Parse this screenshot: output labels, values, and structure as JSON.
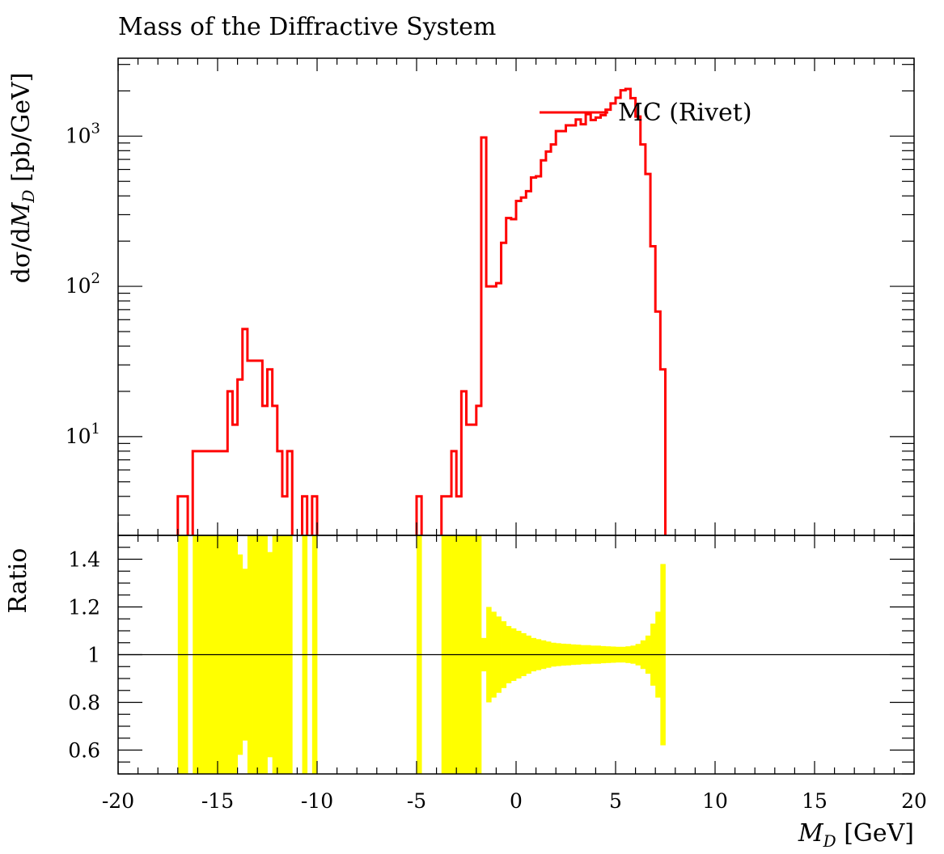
{
  "chart_data": {
    "type": "line",
    "title": "Mass of the Diffractive System",
    "xlabel_main": "M",
    "xlabel_sub": "D",
    "xlabel_unit": " [GeV]",
    "ylabel_prefix": "dσ/d",
    "ylabel_main": "M",
    "ylabel_sub": "D",
    "ylabel_unit": " [pb/GeV]",
    "ratio_label": "Ratio",
    "xlim": [
      -20,
      20
    ],
    "ylim_log": [
      2.2,
      3300
    ],
    "yscale": "log",
    "ratio_ylim": [
      0.5,
      1.5
    ],
    "x_ticks": [
      -20,
      -15,
      -10,
      -5,
      0,
      5,
      10,
      15,
      20
    ],
    "x_tick_labels": [
      "-20",
      "-15",
      "-10",
      "-5",
      "0",
      "5",
      "10",
      "15",
      "20"
    ],
    "y_ticks": [
      {
        "base": "10",
        "exp": "1",
        "value": 10
      },
      {
        "base": "10",
        "exp": "2",
        "value": 100
      },
      {
        "base": "10",
        "exp": "3",
        "value": 1000
      }
    ],
    "ratio_ticks": [
      0.6,
      0.8,
      1.0,
      1.2,
      1.4
    ],
    "ratio_tick_labels": [
      "0.6",
      "0.8",
      "1",
      "1.2",
      "1.4"
    ],
    "series": [
      {
        "name": "MC (Rivet)",
        "color": "#ff0000",
        "bin_width": 0.25,
        "bins": [
          [
            -17.0,
            4
          ],
          [
            -16.75,
            4
          ],
          [
            -16.25,
            8
          ],
          [
            -16.0,
            8
          ],
          [
            -15.75,
            8
          ],
          [
            -15.5,
            8
          ],
          [
            -15.25,
            8
          ],
          [
            -15.0,
            8
          ],
          [
            -14.75,
            8
          ],
          [
            -14.5,
            20
          ],
          [
            -14.25,
            12
          ],
          [
            -14.0,
            24
          ],
          [
            -13.75,
            52
          ],
          [
            -13.5,
            32
          ],
          [
            -13.25,
            32
          ],
          [
            -13.0,
            32
          ],
          [
            -12.75,
            16
          ],
          [
            -12.5,
            28
          ],
          [
            -12.25,
            16
          ],
          [
            -12.0,
            8
          ],
          [
            -11.75,
            4
          ],
          [
            -11.5,
            8
          ],
          [
            -10.75,
            4
          ],
          [
            -10.25,
            4
          ],
          [
            -5.0,
            4
          ],
          [
            -3.75,
            4
          ],
          [
            -3.5,
            4
          ],
          [
            -3.25,
            8
          ],
          [
            -3.0,
            4
          ],
          [
            -2.75,
            20
          ],
          [
            -2.5,
            12
          ],
          [
            -2.25,
            12
          ],
          [
            -2.0,
            16
          ],
          [
            -1.75,
            980
          ],
          [
            -1.5,
            100
          ],
          [
            -1.25,
            100
          ],
          [
            -1.0,
            105
          ],
          [
            -0.75,
            195
          ],
          [
            -0.5,
            285
          ],
          [
            -0.25,
            280
          ],
          [
            0.0,
            370
          ],
          [
            0.25,
            390
          ],
          [
            0.5,
            430
          ],
          [
            0.75,
            530
          ],
          [
            1.0,
            540
          ],
          [
            1.25,
            690
          ],
          [
            1.5,
            790
          ],
          [
            1.75,
            880
          ],
          [
            2.0,
            1080
          ],
          [
            2.25,
            1080
          ],
          [
            2.5,
            1180
          ],
          [
            2.75,
            1180
          ],
          [
            3.0,
            1290
          ],
          [
            3.25,
            1200
          ],
          [
            3.5,
            1400
          ],
          [
            3.75,
            1280
          ],
          [
            4.0,
            1330
          ],
          [
            4.25,
            1380
          ],
          [
            4.5,
            1500
          ],
          [
            4.75,
            1650
          ],
          [
            5.0,
            1800
          ],
          [
            5.25,
            2020
          ],
          [
            5.5,
            2060
          ],
          [
            5.75,
            1790
          ],
          [
            6.0,
            1350
          ],
          [
            6.25,
            880
          ],
          [
            6.5,
            560
          ],
          [
            6.75,
            185
          ],
          [
            7.0,
            68
          ],
          [
            7.25,
            28
          ]
        ]
      }
    ],
    "ratio_band": [
      [
        -17.0,
        0.5,
        1.5
      ],
      [
        -16.75,
        0.5,
        1.5
      ],
      [
        -16.25,
        0.5,
        1.5
      ],
      [
        -16.0,
        0.5,
        1.5
      ],
      [
        -15.75,
        0.5,
        1.5
      ],
      [
        -15.5,
        0.5,
        1.5
      ],
      [
        -15.25,
        0.5,
        1.5
      ],
      [
        -15.0,
        0.5,
        1.5
      ],
      [
        -14.75,
        0.5,
        1.5
      ],
      [
        -14.5,
        0.5,
        1.5
      ],
      [
        -14.25,
        0.5,
        1.5
      ],
      [
        -14.0,
        0.58,
        1.42
      ],
      [
        -13.75,
        0.64,
        1.36
      ],
      [
        -13.5,
        0.5,
        1.5
      ],
      [
        -13.25,
        0.5,
        1.5
      ],
      [
        -13.0,
        0.5,
        1.5
      ],
      [
        -12.75,
        0.5,
        1.5
      ],
      [
        -12.5,
        0.57,
        1.43
      ],
      [
        -12.25,
        0.5,
        1.5
      ],
      [
        -12.0,
        0.5,
        1.5
      ],
      [
        -11.75,
        0.5,
        1.5
      ],
      [
        -11.5,
        0.5,
        1.5
      ],
      [
        -10.75,
        0.5,
        1.5
      ],
      [
        -10.25,
        0.5,
        1.5
      ],
      [
        -5.0,
        0.5,
        1.5
      ],
      [
        -3.75,
        0.5,
        1.5
      ],
      [
        -3.5,
        0.5,
        1.5
      ],
      [
        -3.25,
        0.5,
        1.5
      ],
      [
        -3.0,
        0.5,
        1.5
      ],
      [
        -2.75,
        0.5,
        1.5
      ],
      [
        -2.5,
        0.5,
        1.5
      ],
      [
        -2.25,
        0.5,
        1.5
      ],
      [
        -2.0,
        0.5,
        1.5
      ],
      [
        -1.75,
        0.93,
        1.07
      ],
      [
        -1.5,
        0.8,
        1.2
      ],
      [
        -1.25,
        0.82,
        1.18
      ],
      [
        -1.0,
        0.84,
        1.16
      ],
      [
        -0.75,
        0.86,
        1.14
      ],
      [
        -0.5,
        0.88,
        1.12
      ],
      [
        -0.25,
        0.89,
        1.11
      ],
      [
        0.0,
        0.9,
        1.1
      ],
      [
        0.25,
        0.91,
        1.09
      ],
      [
        0.5,
        0.92,
        1.08
      ],
      [
        0.75,
        0.93,
        1.07
      ],
      [
        1.0,
        0.935,
        1.065
      ],
      [
        1.25,
        0.94,
        1.06
      ],
      [
        1.5,
        0.945,
        1.055
      ],
      [
        1.75,
        0.95,
        1.05
      ],
      [
        2.0,
        0.952,
        1.048
      ],
      [
        2.25,
        0.954,
        1.046
      ],
      [
        2.5,
        0.955,
        1.045
      ],
      [
        2.75,
        0.957,
        1.043
      ],
      [
        3.0,
        0.958,
        1.042
      ],
      [
        3.25,
        0.96,
        1.04
      ],
      [
        3.5,
        0.96,
        1.04
      ],
      [
        3.75,
        0.962,
        1.038
      ],
      [
        4.0,
        0.962,
        1.038
      ],
      [
        4.25,
        0.964,
        1.036
      ],
      [
        4.5,
        0.965,
        1.035
      ],
      [
        4.75,
        0.966,
        1.034
      ],
      [
        5.0,
        0.967,
        1.033
      ],
      [
        5.25,
        0.967,
        1.033
      ],
      [
        5.5,
        0.965,
        1.035
      ],
      [
        5.75,
        0.962,
        1.038
      ],
      [
        6.0,
        0.955,
        1.045
      ],
      [
        6.25,
        0.94,
        1.06
      ],
      [
        6.5,
        0.92,
        1.08
      ],
      [
        6.75,
        0.87,
        1.13
      ],
      [
        7.0,
        0.82,
        1.18
      ],
      [
        7.25,
        0.62,
        1.38
      ]
    ],
    "legend_position": "top-right"
  }
}
